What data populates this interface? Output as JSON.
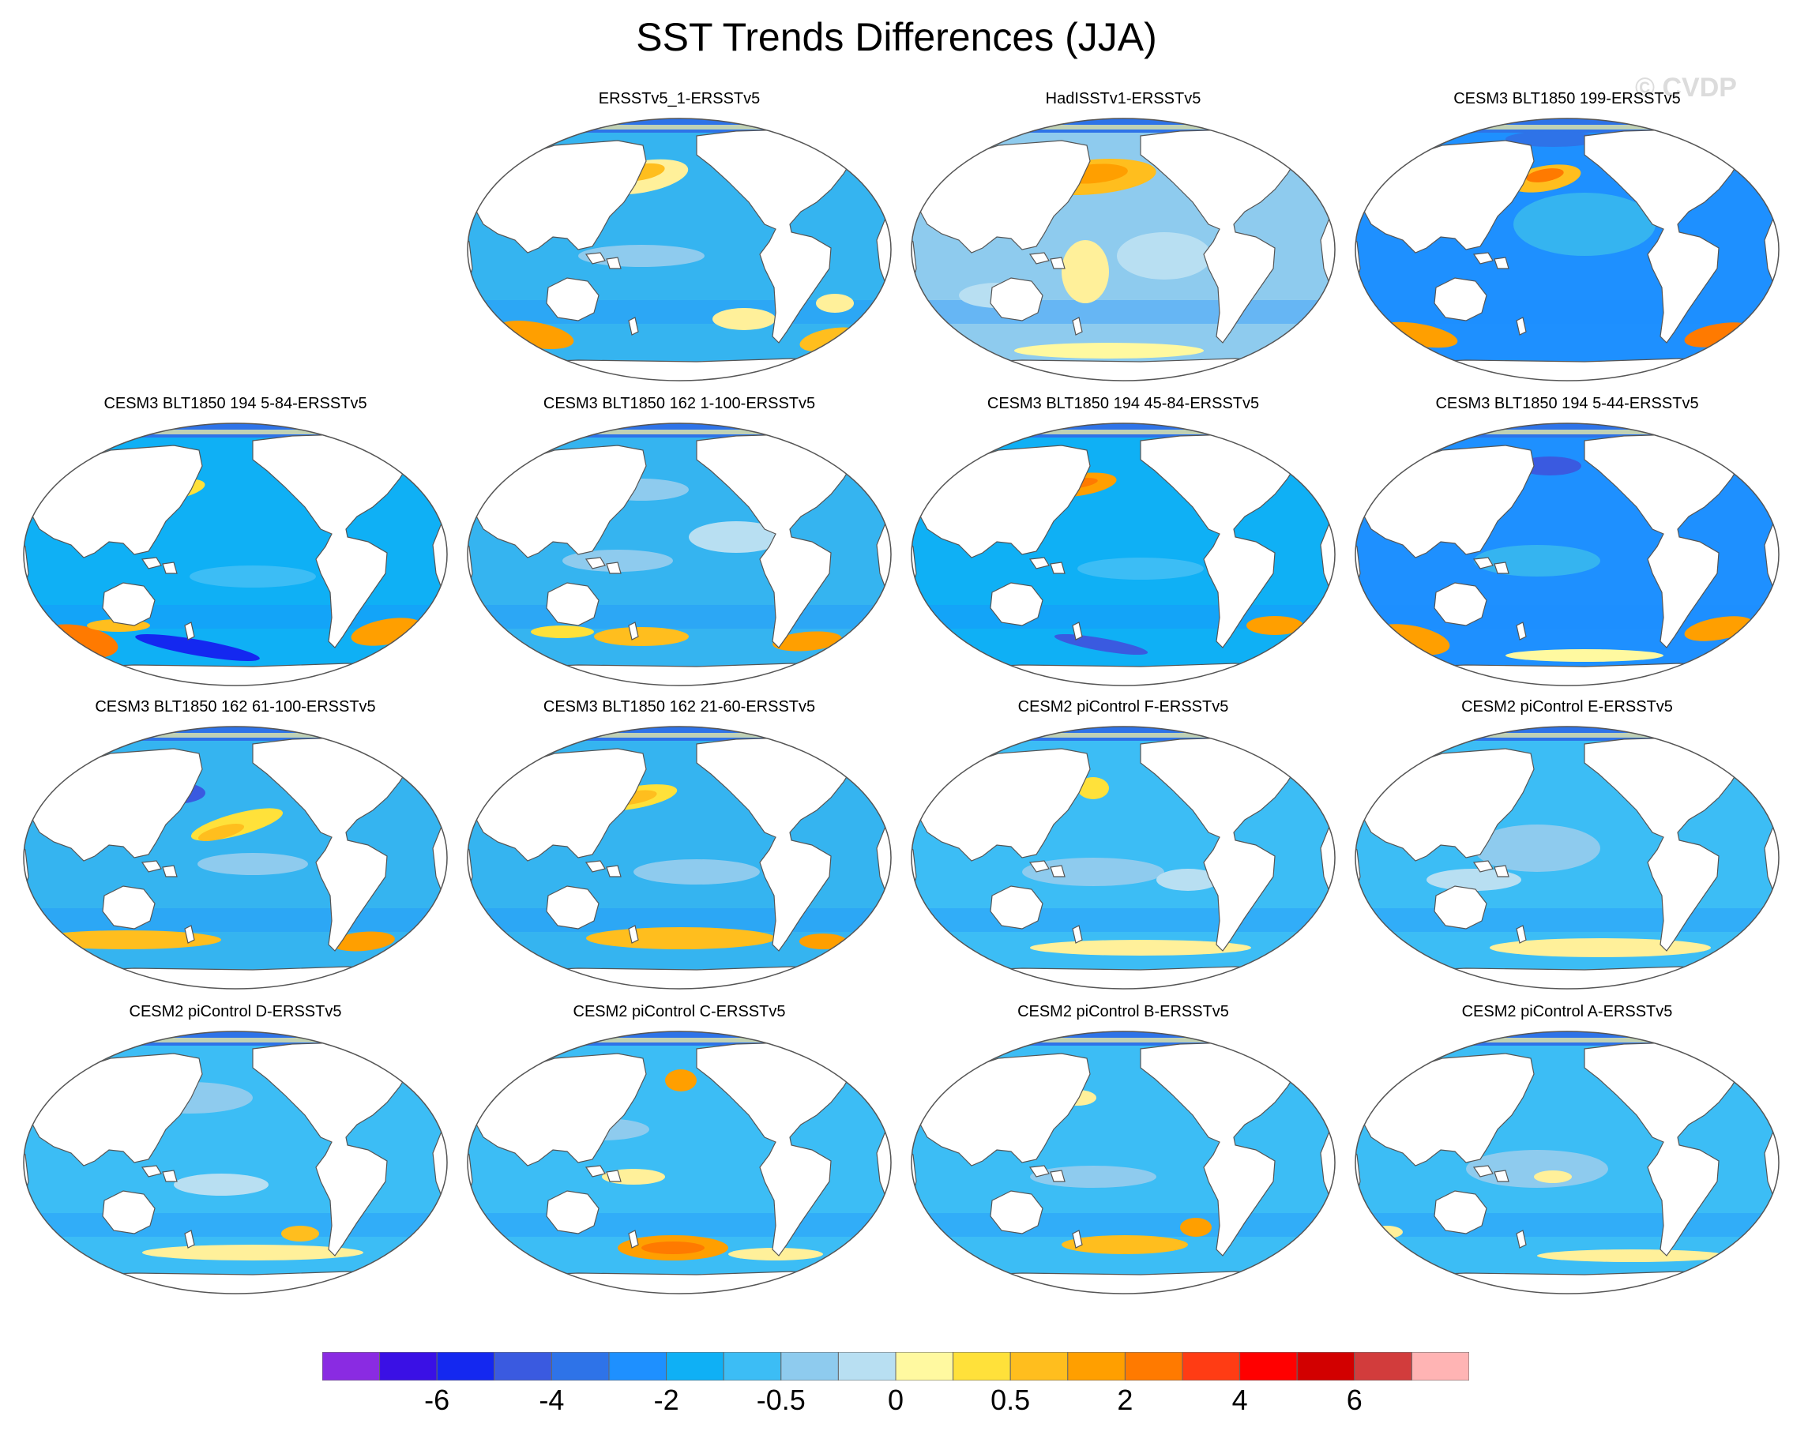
{
  "title": "SST Trends Differences (JJA)",
  "watermark": "© CVDP",
  "panels": [
    {
      "label": "ERSSTv5_1-ERSSTv5",
      "col": 1,
      "row": 0,
      "variant": 0
    },
    {
      "label": "HadISSTv1-ERSSTv5",
      "col": 2,
      "row": 0,
      "variant": 1
    },
    {
      "label": "CESM3 BLT1850 199-ERSSTv5",
      "col": 3,
      "row": 0,
      "variant": 2
    },
    {
      "label": "CESM3 BLT1850 194 5-84-ERSSTv5",
      "col": 0,
      "row": 1,
      "variant": 3
    },
    {
      "label": "CESM3 BLT1850 162 1-100-ERSSTv5",
      "col": 1,
      "row": 1,
      "variant": 4
    },
    {
      "label": "CESM3 BLT1850 194 45-84-ERSSTv5",
      "col": 2,
      "row": 1,
      "variant": 5
    },
    {
      "label": "CESM3 BLT1850 194 5-44-ERSSTv5",
      "col": 3,
      "row": 1,
      "variant": 6
    },
    {
      "label": "CESM3 BLT1850 162 61-100-ERSSTv5",
      "col": 0,
      "row": 2,
      "variant": 7
    },
    {
      "label": "CESM3 BLT1850 162 21-60-ERSSTv5",
      "col": 1,
      "row": 2,
      "variant": 8
    },
    {
      "label": "CESM2 piControl F-ERSSTv5",
      "col": 2,
      "row": 2,
      "variant": 9
    },
    {
      "label": "CESM2 piControl E-ERSSTv5",
      "col": 3,
      "row": 2,
      "variant": 10
    },
    {
      "label": "CESM2 piControl D-ERSSTv5",
      "col": 0,
      "row": 3,
      "variant": 11
    },
    {
      "label": "CESM2 piControl C-ERSSTv5",
      "col": 1,
      "row": 3,
      "variant": 12
    },
    {
      "label": "CESM2 piControl B-ERSSTv5",
      "col": 2,
      "row": 3,
      "variant": 13
    },
    {
      "label": "CESM2 piControl A-ERSSTv5",
      "col": 3,
      "row": 3,
      "variant": 14
    }
  ],
  "colorbar": {
    "colors": [
      "#8a2be2",
      "#3a10e5",
      "#1428f0",
      "#3a5ae0",
      "#2e73e8",
      "#1e90ff",
      "#0fb0f5",
      "#3cbdf5",
      "#8ecbee",
      "#b8dff2",
      "#fff9a0",
      "#ffe13a",
      "#ffbe1e",
      "#ff9f00",
      "#ff7a00",
      "#ff3c14",
      "#ff0000",
      "#d20000",
      "#d23c3c",
      "#ffb4b4"
    ],
    "labels": [
      {
        "text": "-6",
        "boundary": 2
      },
      {
        "text": "-4",
        "boundary": 4
      },
      {
        "text": "-2",
        "boundary": 6
      },
      {
        "text": "-0.5",
        "boundary": 8
      },
      {
        "text": "0",
        "boundary": 10
      },
      {
        "text": "0.5",
        "boundary": 12
      },
      {
        "text": "2",
        "boundary": 14
      },
      {
        "text": "4",
        "boundary": 16
      },
      {
        "text": "6",
        "boundary": 18
      }
    ]
  }
}
